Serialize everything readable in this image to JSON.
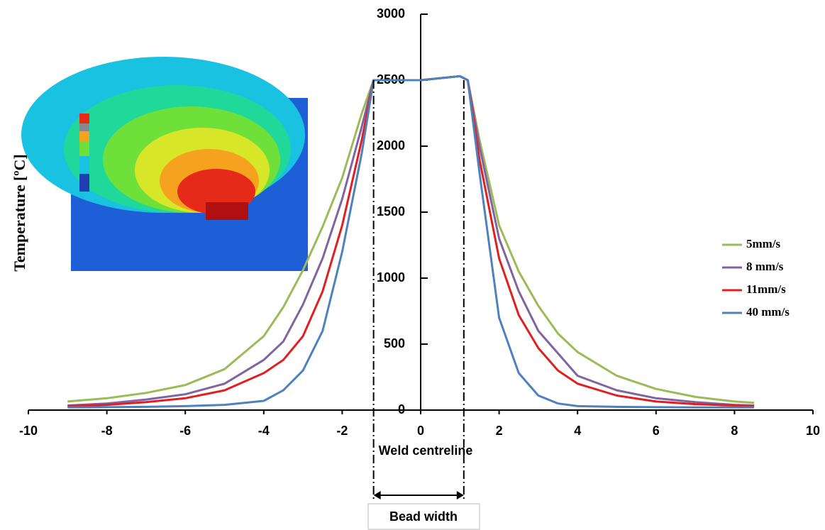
{
  "chart_data": {
    "type": "line",
    "x_label": "Weld centreline",
    "y_label": "Temperature [ºC]",
    "annotation": "Bead width",
    "bead_edges": [
      -1.2,
      1.1
    ],
    "x": [
      -9,
      -8,
      -7,
      -6,
      -5,
      -4,
      -3.5,
      -3,
      -2.5,
      -2,
      -1.5,
      -1.2,
      -1,
      0,
      1,
      1.2,
      1.5,
      2,
      2.5,
      3,
      3.5,
      4,
      5,
      6,
      7,
      8,
      8.5
    ],
    "series": [
      {
        "name": "5mm/s",
        "color": "#9bbb59",
        "values": [
          65,
          90,
          130,
          190,
          310,
          560,
          780,
          1060,
          1390,
          1760,
          2250,
          2500,
          2500,
          2500,
          2530,
          2500,
          2050,
          1400,
          1050,
          790,
          580,
          440,
          260,
          160,
          100,
          65,
          55
        ]
      },
      {
        "name": "8 mm/s",
        "color": "#8064a2",
        "values": [
          35,
          50,
          80,
          120,
          200,
          380,
          520,
          800,
          1150,
          1600,
          2150,
          2500,
          2500,
          2500,
          2530,
          2500,
          2000,
          1300,
          900,
          600,
          430,
          260,
          150,
          90,
          60,
          40,
          35
        ]
      },
      {
        "name": "11mm/s",
        "color": "#e02020",
        "values": [
          30,
          40,
          60,
          90,
          150,
          280,
          380,
          560,
          900,
          1400,
          2050,
          2500,
          2500,
          2500,
          2530,
          2500,
          1900,
          1150,
          720,
          470,
          300,
          200,
          110,
          65,
          45,
          35,
          30
        ]
      },
      {
        "name": "40 mm/s",
        "color": "#4f81bd",
        "values": [
          20,
          22,
          25,
          30,
          40,
          70,
          150,
          300,
          600,
          1200,
          1950,
          2500,
          2500,
          2500,
          2530,
          2500,
          1800,
          700,
          280,
          110,
          50,
          30,
          25,
          22,
          20,
          20,
          20
        ]
      }
    ],
    "xlim": [
      -10,
      10
    ],
    "xticks": [
      -10,
      -8,
      -6,
      -4,
      -2,
      0,
      2,
      4,
      6,
      8,
      10
    ],
    "ylim": [
      0,
      3000
    ],
    "yticks": [
      0,
      500,
      1000,
      1500,
      2000,
      2500,
      3000
    ],
    "legend": "right"
  }
}
